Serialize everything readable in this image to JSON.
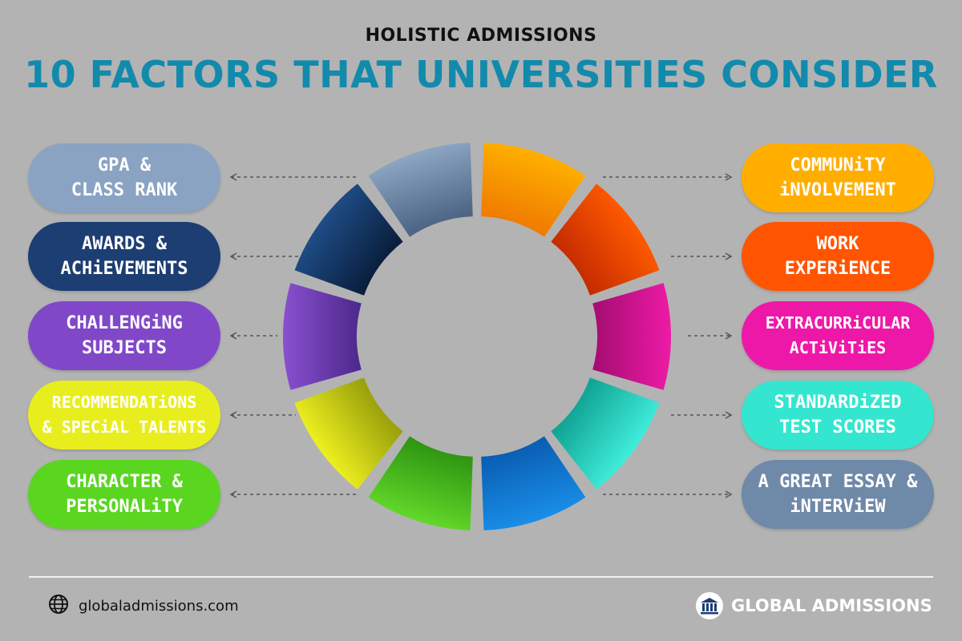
{
  "header": {
    "subtitle": "HOLISTIC ADMISSIONS",
    "title": "10 FACTORS THAT UNIVERSITIES CONSIDER"
  },
  "factors_left": [
    {
      "label": "GPA &\nCLASS RANK",
      "color": "#8aa3c2"
    },
    {
      "label": "AWARDS &\nACHiEVEMENTS",
      "color": "#1d3e72"
    },
    {
      "label": "CHALLENGiNG\nSUBJECTS",
      "color": "#8048c8"
    },
    {
      "label": "RECOMMENDATiONS\n& SPECiAL TALENTS",
      "color": "#e8ee1e"
    },
    {
      "label": "CHARACTER &\nPERSONALiTY",
      "color": "#5ad621"
    }
  ],
  "factors_right": [
    {
      "label": "COMMUNiTY\niNVOLVEMENT",
      "color": "#ffae00"
    },
    {
      "label": "WORK\nEXPERiENCE",
      "color": "#ff5500"
    },
    {
      "label": "EXTRACURRiCULAR\nACTiViTiES",
      "color": "#ee18a8"
    },
    {
      "label": "STANDARDiZED\nTEST SCORES",
      "color": "#34e6cf"
    },
    {
      "label": "A GREAT ESSAY &\niNTERViEW",
      "color": "#6f89a8"
    }
  ],
  "wheel_segments": [
    {
      "color_from": "#ffb000",
      "color_to": "#f07c00",
      "icon": "segment"
    },
    {
      "color_from": "#ff5a00",
      "color_to": "#c72d00",
      "icon": "segment"
    },
    {
      "color_from": "#ee1aa6",
      "color_to": "#a80d74",
      "icon": "segment"
    },
    {
      "color_from": "#40eedb",
      "color_to": "#12a596",
      "icon": "segment"
    },
    {
      "color_from": "#1a8ee8",
      "color_to": "#0a5fb4",
      "icon": "segment"
    },
    {
      "color_from": "#62d82a",
      "color_to": "#2f9712",
      "icon": "segment"
    },
    {
      "color_from": "#eef020",
      "color_to": "#9ba20c",
      "icon": "segment"
    },
    {
      "color_from": "#8a50d0",
      "color_to": "#4f2a8e",
      "icon": "segment"
    },
    {
      "color_from": "#1e4d86",
      "color_to": "#0a1f3e",
      "icon": "segment"
    },
    {
      "color_from": "#8da6c4",
      "color_to": "#4e6685",
      "icon": "segment"
    }
  ],
  "footer": {
    "website": "globaladmissions.com",
    "brand": "GLOBAL ADMISSIONS",
    "website_icon": "globe-icon",
    "brand_icon": "institution-icon"
  }
}
